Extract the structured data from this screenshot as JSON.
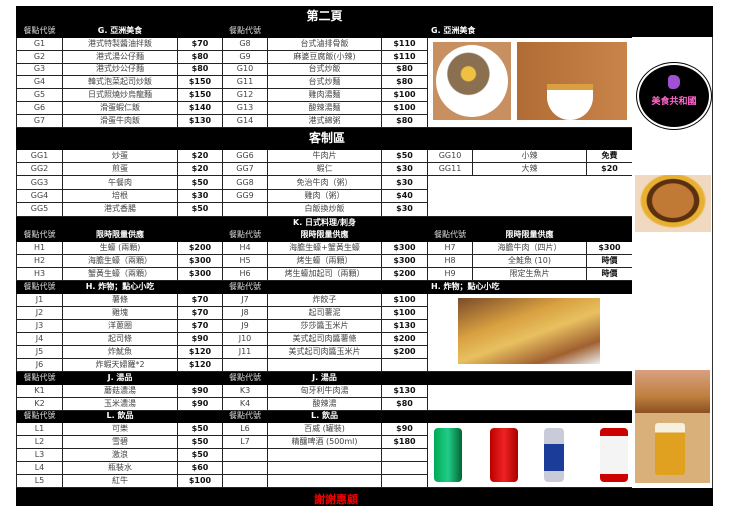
{
  "page_title": "第二頁",
  "code_header": "餐點代號",
  "g": {
    "title": "G. 亞洲美食",
    "left": [
      [
        "G1",
        "港式特製醬油拌飯",
        "$70"
      ],
      [
        "G2",
        "港式湯公仔麵",
        "$80"
      ],
      [
        "G3",
        "港式炒公仔麵",
        "$80"
      ],
      [
        "G4",
        "韓式泡菜起司炒飯",
        "$150"
      ],
      [
        "G5",
        "日式照燒炒烏龍麵",
        "$150"
      ],
      [
        "G6",
        "滑蛋蝦仁飯",
        "$140"
      ],
      [
        "G7",
        "滑蛋牛肉飯",
        "$130"
      ]
    ],
    "right": [
      [
        "G8",
        "台式滷排骨飯",
        "$110"
      ],
      [
        "G9",
        "麻婆豆腐飯(小辣)",
        "$110"
      ],
      [
        "G10",
        "台式炒飯",
        "$80"
      ],
      [
        "G11",
        "台式炒麵",
        "$80"
      ],
      [
        "G12",
        "雞肉湯麵",
        "$100"
      ],
      [
        "G13",
        "酸辣湯麵",
        "$100"
      ],
      [
        "G14",
        "港式綿粥",
        "$80"
      ]
    ]
  },
  "gg": {
    "title": "客制區",
    "left": [
      [
        "GG1",
        "炒蛋",
        "$20"
      ],
      [
        "GG2",
        "煎蛋",
        "$20"
      ],
      [
        "GG3",
        "午餐肉",
        "$50"
      ],
      [
        "GG4",
        "培根",
        "$30"
      ],
      [
        "GG5",
        "港式香腸",
        "$50"
      ]
    ],
    "mid": [
      [
        "GG6",
        "牛肉片",
        "$50"
      ],
      [
        "GG7",
        "蝦仁",
        "$30"
      ],
      [
        "GG8",
        "免治牛肉（粥）",
        "$30"
      ],
      [
        "GG9",
        "雞肉（粥）",
        "$40"
      ],
      [
        "",
        "白飯換炒飯",
        "$30"
      ]
    ],
    "right": [
      [
        "GG10",
        "小辣",
        "免費"
      ],
      [
        "GG11",
        "大辣",
        "$20"
      ]
    ]
  },
  "h": {
    "title": "K. 日式料理/刺身",
    "subtitle": "限時限量供應",
    "cols": [
      [
        [
          "H1",
          "生蠔 (兩顆)",
          "$200"
        ],
        [
          "H2",
          "海膽生蠔（兩顆）",
          "$300"
        ],
        [
          "H3",
          "蟹黃生蠔（兩顆）",
          "$300"
        ]
      ],
      [
        [
          "H4",
          "海膽生蠔+蟹黃生蠔",
          "$300"
        ],
        [
          "H5",
          "烤生蠔（兩顆）",
          "$300"
        ],
        [
          "H6",
          "烤生蠔加起司（兩顆）",
          "$200"
        ]
      ],
      [
        [
          "H7",
          "海膽牛肉（四片）",
          "$300"
        ],
        [
          "H8",
          "全鮭魚 (10)",
          "時價"
        ],
        [
          "H9",
          "限定生魚片",
          "時價"
        ]
      ]
    ]
  },
  "j": {
    "title": "H. 炸物；點心小吃",
    "left": [
      [
        "J1",
        "薯條",
        "$70"
      ],
      [
        "J2",
        "雞塊",
        "$70"
      ],
      [
        "J3",
        "洋蔥圈",
        "$70"
      ],
      [
        "J4",
        "起司條",
        "$90"
      ],
      [
        "J5",
        "炸魷魚",
        "$120"
      ],
      [
        "J6",
        "炸蝦天婦羅*2",
        "$120"
      ]
    ],
    "mid": [
      [
        "J7",
        "炸餃子",
        "$100"
      ],
      [
        "J8",
        "起司薯泥",
        "$100"
      ],
      [
        "J9",
        "莎莎醬玉米片",
        "$130"
      ],
      [
        "J10",
        "美式起司肉醬薯條",
        "$200"
      ],
      [
        "J11",
        "美式起司肉醬玉米片",
        "$200"
      ]
    ]
  },
  "k": {
    "title": "J. 湯品",
    "left": [
      [
        "K1",
        "蘑菇濃湯",
        "$90"
      ],
      [
        "K2",
        "玉米濃湯",
        "$90"
      ]
    ],
    "mid": [
      [
        "K3",
        "匈牙利牛肉湯",
        "$130"
      ],
      [
        "K4",
        "酸辣湯",
        "$80"
      ]
    ]
  },
  "l": {
    "title": "L. 飲品",
    "left": [
      [
        "L1",
        "可樂",
        "$50"
      ],
      [
        "L2",
        "雪碧",
        "$50"
      ],
      [
        "L3",
        "激浪",
        "$50"
      ],
      [
        "L4",
        "瓶裝水",
        "$60"
      ],
      [
        "L5",
        "紅牛",
        "$100"
      ]
    ],
    "mid": [
      [
        "L6",
        "百威 (罐裝)",
        "$90"
      ],
      [
        "L7",
        "精釀啤酒 (500ml)",
        "$180"
      ]
    ]
  },
  "footer": "謝謝惠顧",
  "logo": {
    "name": "美食共和國"
  },
  "colors": {
    "header_bg": "#000000",
    "footer_text": "#e00000"
  }
}
